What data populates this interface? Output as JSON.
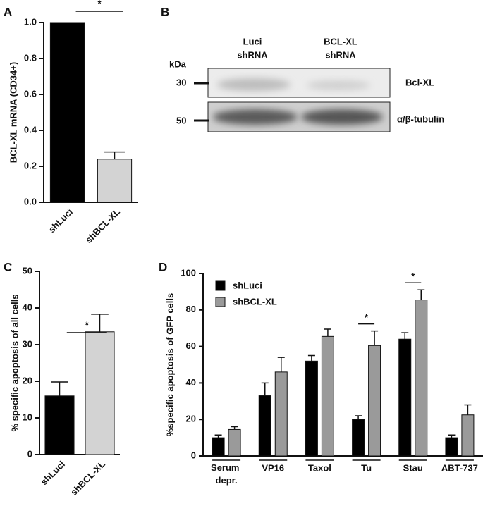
{
  "chart_data": [
    {
      "type": "bar",
      "panel": "A",
      "ylabel": "BCL-XL mRNA (CD34+)",
      "categories": [
        "shLuci",
        "shBCL-XL"
      ],
      "values": [
        1.0,
        0.24
      ],
      "errors": [
        null,
        0.04
      ],
      "colors": [
        "#000000",
        "#d3d3d3"
      ],
      "ylim": [
        0,
        1.0
      ],
      "yticks": [
        {
          "value": 0,
          "label": "0.0"
        },
        0.2,
        0.4,
        0.6,
        0.8,
        {
          "value": 1.0,
          "label": "1.0"
        }
      ],
      "annotation": "*"
    },
    {
      "type": "bar",
      "panel": "C",
      "ylabel": "% specific apoptosis of all cells",
      "categories": [
        "shLuci",
        "shBCL-XL"
      ],
      "values": [
        16,
        33.5
      ],
      "errors": [
        3.8,
        4.8
      ],
      "colors": [
        "#000000",
        "#d3d3d3"
      ],
      "ylim": [
        0,
        50
      ],
      "yticks": [
        0,
        10,
        20,
        30,
        40,
        50
      ],
      "annotation": "*"
    },
    {
      "type": "grouped-bar",
      "panel": "D",
      "ylabel": "%specific apoptosis of GFP cells",
      "categories": [
        "Serum depr.",
        "VP16",
        "Taxol",
        "Tu",
        "Stau",
        "ABT-737"
      ],
      "series": [
        {
          "name": "shLuci",
          "color": "#000000",
          "values": [
            10,
            33,
            52,
            20,
            64,
            10
          ],
          "errors": [
            1.5,
            7,
            3,
            2,
            3.5,
            1.5
          ]
        },
        {
          "name": "shBCL-XL",
          "color": "#9a9a9a",
          "values": [
            14.5,
            46,
            65.5,
            60.5,
            85.5,
            22.5
          ],
          "errors": [
            1.5,
            8,
            4,
            8,
            5.5,
            5.5
          ]
        }
      ],
      "ylim": [
        0,
        100
      ],
      "yticks": [
        0,
        20,
        40,
        60,
        80,
        100
      ],
      "significance": [
        {
          "category": "Tu",
          "text": "*"
        },
        {
          "category": "Stau",
          "text": "*"
        }
      ]
    }
  ],
  "blot": {
    "panel": "B",
    "lanes": [
      [
        "Luci",
        "shRNA"
      ],
      [
        "BCL-XL",
        "shRNA"
      ]
    ],
    "unit": "kDa",
    "bands": [
      {
        "marker": "30",
        "label": "Bcl-XL"
      },
      {
        "marker": "50",
        "label": "α/β-tubulin"
      }
    ]
  }
}
